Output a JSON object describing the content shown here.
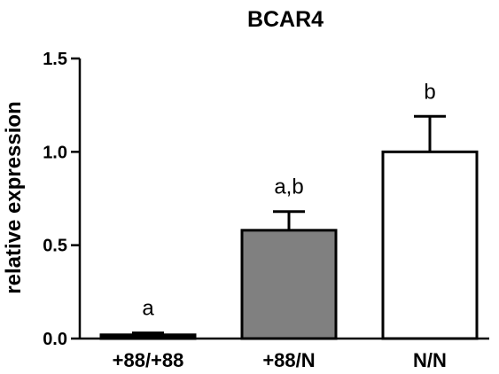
{
  "chart_data": {
    "type": "bar",
    "title": "BCAR4",
    "xlabel": "",
    "ylabel": "relative expression",
    "ylim": [
      0,
      1.5
    ],
    "yticks": [
      "0.0",
      "0.5",
      "1.0",
      "1.5"
    ],
    "categories": [
      "+88/+88",
      "+88/N",
      "N/N"
    ],
    "values": [
      0.02,
      0.58,
      1.0
    ],
    "errors": [
      0.01,
      0.1,
      0.19
    ],
    "significance": [
      "a",
      "a,b",
      "b"
    ],
    "bar_colors": [
      "#000000",
      "#808080",
      "#ffffff"
    ],
    "grid": false
  }
}
